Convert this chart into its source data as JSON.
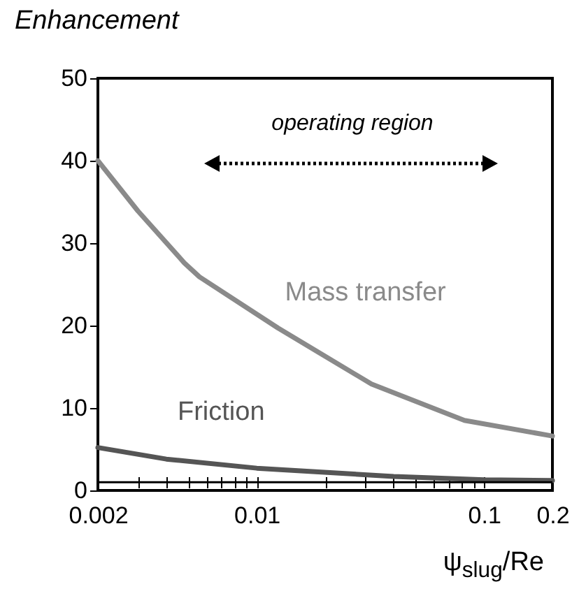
{
  "chart_data": {
    "type": "line",
    "ylabel": "Enhancement",
    "xlabel": "ψ$_{slug}$/Re",
    "log": "x",
    "legend": false,
    "grid": false,
    "marker": "none",
    "xlim": [
      0.002,
      0.2
    ],
    "ylim": [
      0,
      50
    ],
    "xticks": [
      0.002,
      {
        "value": 0.003,
        "label": null
      },
      {
        "value": 0.004,
        "label": null
      },
      {
        "value": 0.005,
        "label": null
      },
      {
        "value": 0.006,
        "label": null
      },
      {
        "value": 0.007,
        "label": null
      },
      {
        "value": 0.008,
        "label": null
      },
      {
        "value": 0.009,
        "label": null
      },
      0.01,
      {
        "value": 0.02,
        "label": null
      },
      {
        "value": 0.03,
        "label": null
      },
      {
        "value": 0.04,
        "label": null
      },
      {
        "value": 0.05,
        "label": null
      },
      {
        "value": 0.06,
        "label": null
      },
      {
        "value": 0.07,
        "label": null
      },
      {
        "value": 0.08,
        "label": null
      },
      {
        "value": 0.09,
        "label": null
      },
      0.1,
      0.2
    ],
    "yticks": [
      0,
      10,
      20,
      30,
      40,
      50
    ],
    "series": [
      {
        "name": "Mass transfer",
        "color": "#8a8a8a",
        "x": [
          0.002,
          0.003,
          0.0048,
          0.0056,
          0.0124,
          0.032,
          0.082,
          0.2
        ],
        "values": [
          40,
          33.9,
          27.6,
          25.9,
          19.7,
          12.9,
          8.5,
          6.6
        ]
      },
      {
        "name": "Friction",
        "color": "#555555",
        "x": [
          0.002,
          0.004,
          0.01,
          0.04,
          0.1,
          0.2
        ],
        "values": [
          5.2,
          3.8,
          2.7,
          1.7,
          1.3,
          1.2
        ]
      }
    ],
    "ref_lines": [
      {
        "axis": "y",
        "value": 1,
        "color": "#000000"
      }
    ],
    "annotations": [
      "operating region"
    ]
  }
}
